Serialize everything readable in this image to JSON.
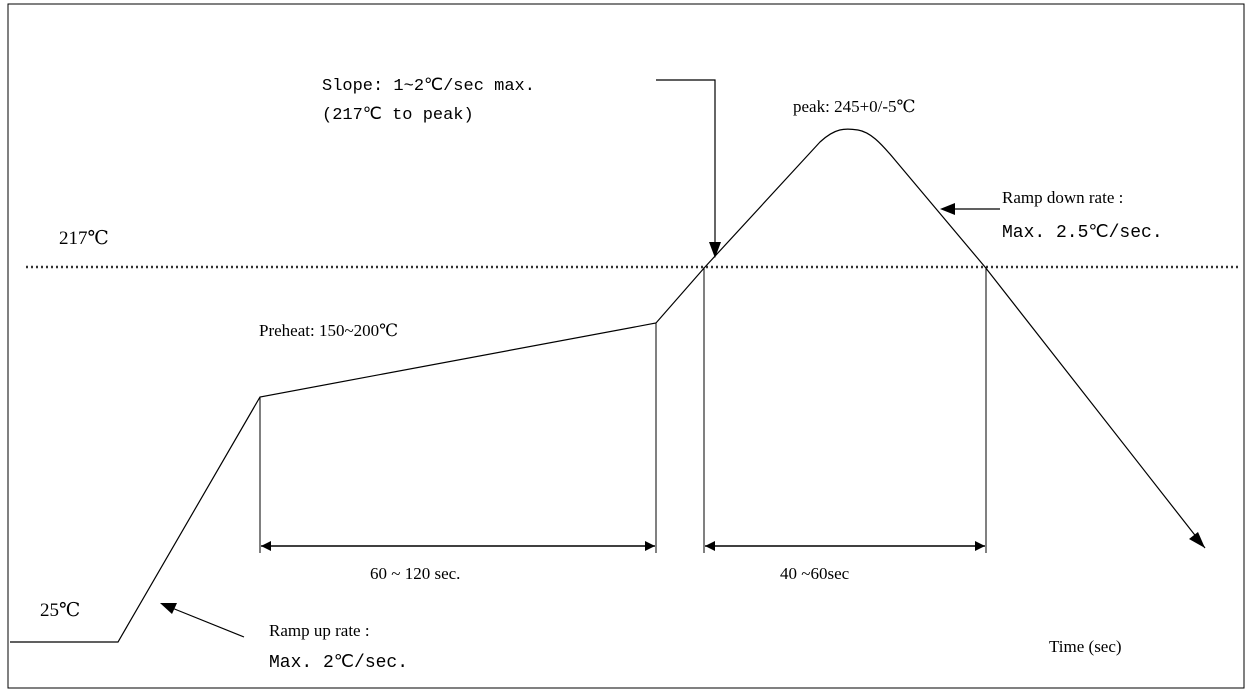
{
  "diagram": {
    "type": "reflow-temperature-profile",
    "labels": {
      "slope_line1": "Slope: 1~2℃/sec max.",
      "slope_line2": "(217℃ to peak)",
      "peak": "peak: 245+0/-5℃",
      "ramp_down_line1": "Ramp down rate :",
      "ramp_down_line2": "Max. 2.5℃/sec.",
      "temp_217": "217℃",
      "preheat": "Preheat: 150~200℃",
      "duration_preheat": "60 ~ 120 sec.",
      "duration_above_217": "40 ~60sec",
      "temp_25": "25℃",
      "ramp_up_line1": "Ramp up rate :",
      "ramp_up_line2": "Max. 2℃/sec.",
      "time_axis": "Time (sec)"
    },
    "colors": {
      "line": "#000000",
      "frame": "#000000",
      "background": "#ffffff"
    }
  }
}
